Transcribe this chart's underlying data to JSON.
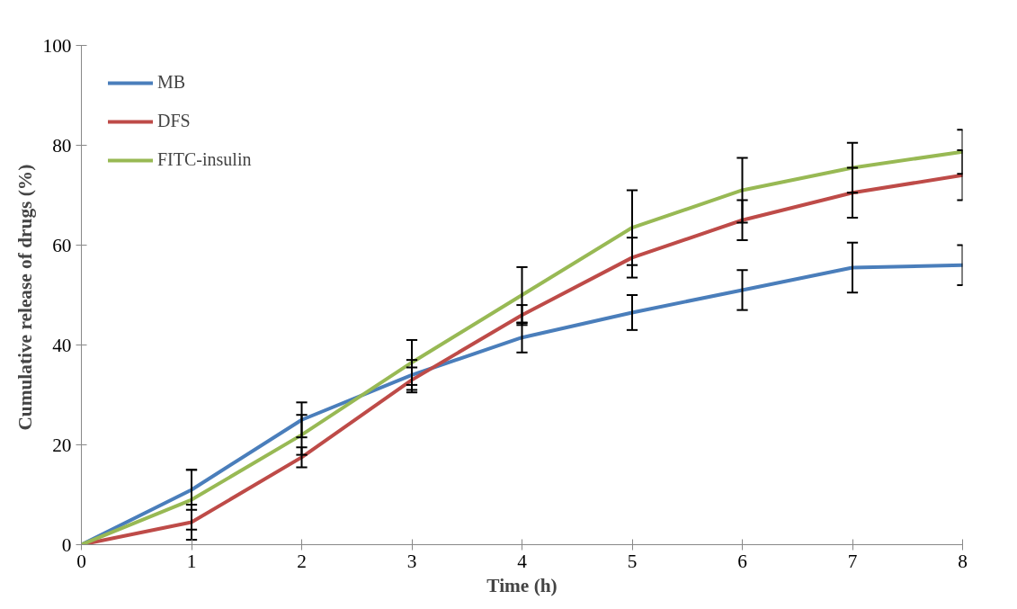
{
  "chart_data": {
    "type": "line",
    "xlabel": "Time (h)",
    "ylabel": "Cumulative release of  drugs (%)",
    "x": [
      0,
      1,
      2,
      3,
      4,
      5,
      6,
      7,
      8
    ],
    "series": [
      {
        "name": "MB",
        "color": "#4a7ebb",
        "values": [
          0,
          11,
          25,
          34,
          41.5,
          46.5,
          51,
          55.5,
          56
        ],
        "errors": [
          null,
          4,
          3.5,
          3,
          3,
          3.5,
          4,
          5,
          4
        ]
      },
      {
        "name": "DFS",
        "color": "#be4b48",
        "values": [
          0,
          4.5,
          17.5,
          33,
          46,
          57.5,
          65,
          70.5,
          74
        ],
        "errors": [
          null,
          3.5,
          2,
          2.5,
          2,
          4,
          4,
          5,
          5
        ]
      },
      {
        "name": "FITC-insulin",
        "color": "#98b954",
        "values": [
          0,
          9,
          22,
          36.5,
          50,
          63.5,
          71,
          75.5,
          78.7
        ],
        "errors": [
          null,
          6,
          4,
          4.5,
          5.6,
          7.5,
          6.5,
          5,
          4.4
        ]
      }
    ],
    "xlim": [
      0,
      8
    ],
    "ylim": [
      0,
      100
    ],
    "xticks": [
      0,
      1,
      2,
      3,
      4,
      5,
      6,
      7,
      8
    ],
    "yticks": [
      0,
      20,
      40,
      60,
      80,
      100
    ],
    "grid": false,
    "legend": "top left",
    "marker": "none",
    "line_style": "solid"
  }
}
